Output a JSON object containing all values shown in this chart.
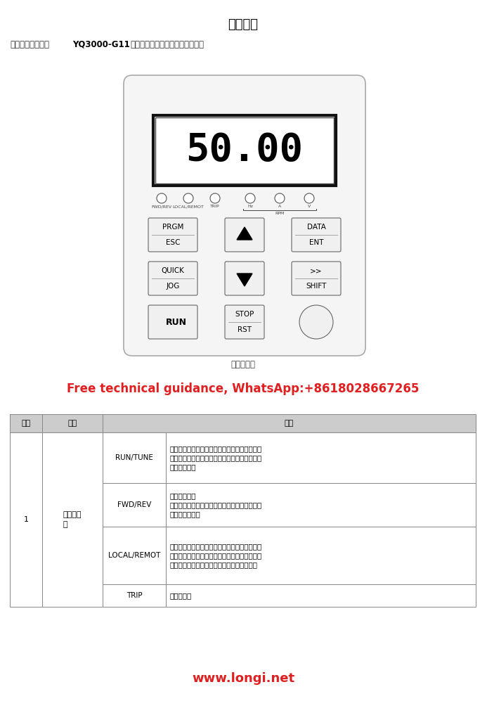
{
  "title": "键盘简介",
  "subtitle_normal": "键盘的用途是控制",
  "subtitle_bold": "YQ3000-G11",
  "subtitle_rest": "系列、读取状态数据和调整参数。",
  "panel_caption": "键盘示意图",
  "ad_text": "Free technical guidance, WhatsApp:+8618028667265",
  "ad_color": "#e02020",
  "website": "www.longi.net",
  "website_color": "#e02020",
  "bg_color": "#ffffff",
  "panel_bg": "#f5f5f5",
  "panel_border": "#aaaaaa",
  "display_text": "50.00",
  "table_header": [
    "序号",
    "名称",
    "说明"
  ],
  "table_header_bg": "#cccccc",
  "table_border": "#888888",
  "title_fontsize": 13,
  "subtitle_fontsize": 8.5,
  "caption_fontsize": 8.5,
  "ad_fontsize": 12,
  "website_fontsize": 13,
  "table_fontsize": 8
}
